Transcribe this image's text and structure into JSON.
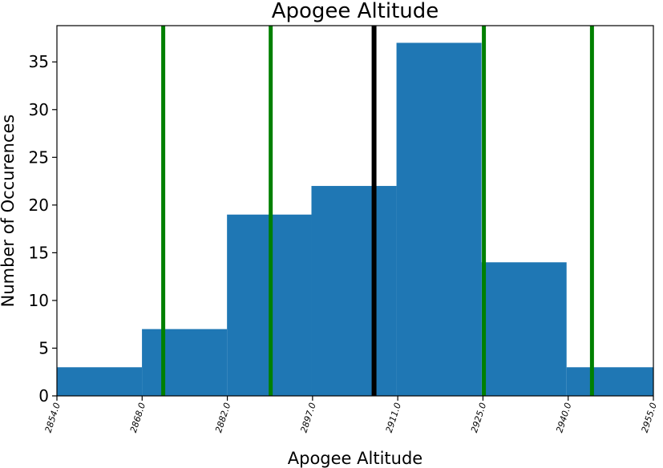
{
  "chart_data": {
    "type": "bar",
    "title": "Apogee Altitude",
    "xlabel": "Apogee Altitude",
    "ylabel": "Number of Occurences",
    "x_tick_labels": [
      "2854.0",
      "2868.0",
      "2882.0",
      "2897.0",
      "2911.0",
      "2925.0",
      "2940.0",
      "2955.0"
    ],
    "bin_edges": [
      2854.0,
      2868.4,
      2882.8,
      2897.1,
      2911.5,
      2925.9,
      2940.3,
      2955.0
    ],
    "values": [
      3,
      7,
      19,
      22,
      37,
      14,
      3
    ],
    "xlim": [
      2854.0,
      2955.0
    ],
    "ylim": [
      0,
      38.8
    ],
    "y_ticks": [
      0,
      5,
      10,
      15,
      20,
      25,
      30,
      35
    ],
    "vertical_lines": [
      {
        "x": 2907.7,
        "color": "#000000"
      },
      {
        "x": 2872.0,
        "color": "#008000"
      },
      {
        "x": 2890.2,
        "color": "#008000"
      },
      {
        "x": 2926.3,
        "color": "#008000"
      },
      {
        "x": 2944.6,
        "color": "#008000"
      }
    ],
    "bar_color": "#1f77b4",
    "grid": false,
    "legend": "none"
  }
}
